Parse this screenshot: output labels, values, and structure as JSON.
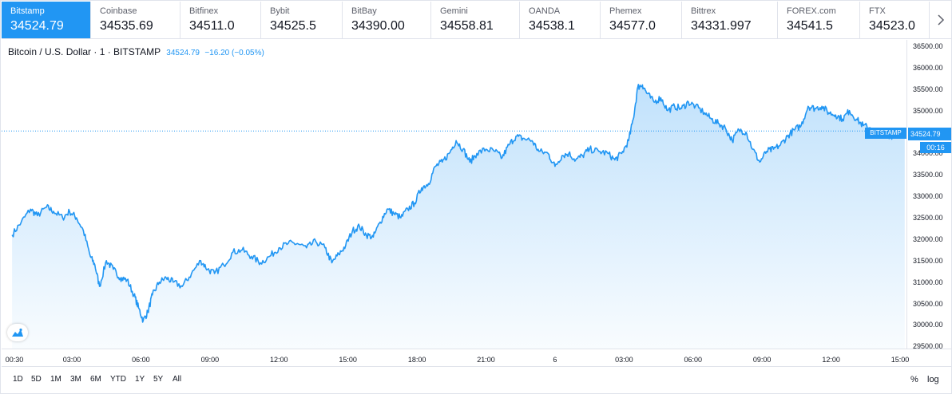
{
  "exchanges": [
    {
      "name": "Bitstamp",
      "price": "34524.79"
    },
    {
      "name": "Coinbase",
      "price": "34535.69"
    },
    {
      "name": "Bitfinex",
      "price": "34511.0"
    },
    {
      "name": "Bybit",
      "price": "34525.5"
    },
    {
      "name": "BitBay",
      "price": "34390.00"
    },
    {
      "name": "Gemini",
      "price": "34558.81"
    },
    {
      "name": "OANDA",
      "price": "34538.1"
    },
    {
      "name": "Phemex",
      "price": "34577.0"
    },
    {
      "name": "Bittrex",
      "price": "34331.997"
    },
    {
      "name": "FOREX.com",
      "price": "34541.5"
    },
    {
      "name": "FTX",
      "price": "34523.0"
    }
  ],
  "legend": {
    "symbol": "Bitcoin / U.S. Dollar · 1 · BITSTAMP",
    "value": "34524.79",
    "change": "−16.20 (−0.05%)"
  },
  "last_price_label": "34524.79",
  "countdown_label": "00:16",
  "series_tag": "BITSTAMP",
  "ranges": [
    "1D",
    "5D",
    "1M",
    "3M",
    "6M",
    "YTD",
    "1Y",
    "5Y",
    "All"
  ],
  "scale_buttons": {
    "percent": "%",
    "log": "log"
  },
  "colors": {
    "accent": "#2196f3",
    "line": "#2196f3"
  },
  "icons": {
    "next": "chevron-right-icon",
    "brand": "tradingview-logo-icon"
  },
  "chart_data": {
    "type": "area",
    "series": [
      {
        "name": "BITSTAMP"
      }
    ],
    "ylim": [
      29450,
      36650
    ],
    "yticks": [
      "36500.00",
      "36000.00",
      "35500.00",
      "35000.00",
      "34500.00",
      "34000.00",
      "33500.00",
      "33000.00",
      "32500.00",
      "32000.00",
      "31500.00",
      "31000.00",
      "30500.00",
      "30000.00",
      "29500.00"
    ],
    "xtick_labels": [
      "00:30",
      "03:00",
      "06:00",
      "09:00",
      "12:00",
      "15:00",
      "18:00",
      "21:00",
      "6",
      "03:00",
      "06:00",
      "09:00",
      "12:00",
      "15:00"
    ],
    "x_hours": [
      0.5,
      3,
      6,
      9,
      12,
      15,
      18,
      21,
      24,
      27,
      30,
      33,
      36,
      39
    ],
    "points": [
      [
        0.4,
        32100
      ],
      [
        0.8,
        32400
      ],
      [
        1.2,
        32700
      ],
      [
        1.5,
        32550
      ],
      [
        1.9,
        32750
      ],
      [
        2.2,
        32650
      ],
      [
        2.6,
        32500
      ],
      [
        2.9,
        32650
      ],
      [
        3.2,
        32500
      ],
      [
        3.5,
        32200
      ],
      [
        3.8,
        31600
      ],
      [
        4.0,
        31400
      ],
      [
        4.2,
        30900
      ],
      [
        4.5,
        31500
      ],
      [
        4.8,
        31300
      ],
      [
        5.1,
        31100
      ],
      [
        5.4,
        31050
      ],
      [
        5.7,
        30700
      ],
      [
        5.9,
        30400
      ],
      [
        6.1,
        30100
      ],
      [
        6.3,
        30300
      ],
      [
        6.5,
        30700
      ],
      [
        6.8,
        31000
      ],
      [
        7.1,
        31100
      ],
      [
        7.4,
        31000
      ],
      [
        7.8,
        30900
      ],
      [
        8.2,
        31200
      ],
      [
        8.6,
        31500
      ],
      [
        8.9,
        31300
      ],
      [
        9.2,
        31200
      ],
      [
        9.6,
        31400
      ],
      [
        10.0,
        31700
      ],
      [
        10.4,
        31750
      ],
      [
        10.8,
        31600
      ],
      [
        11.2,
        31450
      ],
      [
        11.6,
        31600
      ],
      [
        12.0,
        31800
      ],
      [
        12.4,
        31900
      ],
      [
        12.8,
        31900
      ],
      [
        13.2,
        31800
      ],
      [
        13.6,
        31950
      ],
      [
        14.0,
        31800
      ],
      [
        14.3,
        31450
      ],
      [
        14.6,
        31650
      ],
      [
        14.9,
        31850
      ],
      [
        15.2,
        32200
      ],
      [
        15.5,
        32300
      ],
      [
        15.8,
        32100
      ],
      [
        16.1,
        32050
      ],
      [
        16.4,
        32400
      ],
      [
        16.7,
        32700
      ],
      [
        17.0,
        32600
      ],
      [
        17.3,
        32500
      ],
      [
        17.6,
        32700
      ],
      [
        17.9,
        32850
      ],
      [
        18.2,
        33200
      ],
      [
        18.5,
        33300
      ],
      [
        18.8,
        33700
      ],
      [
        19.1,
        33800
      ],
      [
        19.4,
        34000
      ],
      [
        19.7,
        34300
      ],
      [
        20.0,
        34100
      ],
      [
        20.3,
        33800
      ],
      [
        20.6,
        34000
      ],
      [
        21.0,
        34100
      ],
      [
        21.4,
        34050
      ],
      [
        21.7,
        33900
      ],
      [
        22.0,
        34200
      ],
      [
        22.3,
        34400
      ],
      [
        22.6,
        34350
      ],
      [
        23.0,
        34300
      ],
      [
        23.3,
        34050
      ],
      [
        23.7,
        34000
      ],
      [
        24.0,
        33700
      ],
      [
        24.3,
        33950
      ],
      [
        24.6,
        34000
      ],
      [
        24.9,
        33850
      ],
      [
        25.2,
        33950
      ],
      [
        25.5,
        34100
      ],
      [
        25.9,
        34050
      ],
      [
        26.3,
        34000
      ],
      [
        26.6,
        33850
      ],
      [
        26.9,
        34000
      ],
      [
        27.2,
        34300
      ],
      [
        27.4,
        34800
      ],
      [
        27.6,
        35550
      ],
      [
        27.8,
        35600
      ],
      [
        28.0,
        35400
      ],
      [
        28.3,
        35200
      ],
      [
        28.6,
        35300
      ],
      [
        28.9,
        35000
      ],
      [
        29.2,
        35100
      ],
      [
        29.5,
        35050
      ],
      [
        29.8,
        35200
      ],
      [
        30.1,
        35100
      ],
      [
        30.5,
        34950
      ],
      [
        30.8,
        34800
      ],
      [
        31.1,
        34700
      ],
      [
        31.4,
        34600
      ],
      [
        31.7,
        34300
      ],
      [
        32.0,
        34550
      ],
      [
        32.3,
        34500
      ],
      [
        32.6,
        34100
      ],
      [
        32.9,
        33800
      ],
      [
        33.2,
        34050
      ],
      [
        33.5,
        34100
      ],
      [
        33.8,
        34200
      ],
      [
        34.1,
        34400
      ],
      [
        34.4,
        34550
      ],
      [
        34.7,
        34650
      ],
      [
        35.0,
        35100
      ],
      [
        35.3,
        35050
      ],
      [
        35.6,
        35100
      ],
      [
        35.9,
        34950
      ],
      [
        36.2,
        34900
      ],
      [
        36.5,
        34800
      ],
      [
        36.8,
        35000
      ],
      [
        37.1,
        34800
      ],
      [
        37.4,
        34650
      ],
      [
        37.7,
        34600
      ],
      [
        38.0,
        34450
      ],
      [
        38.3,
        34500
      ],
      [
        38.6,
        34400
      ],
      [
        38.9,
        34500
      ],
      [
        39.2,
        34524.79
      ]
    ]
  }
}
